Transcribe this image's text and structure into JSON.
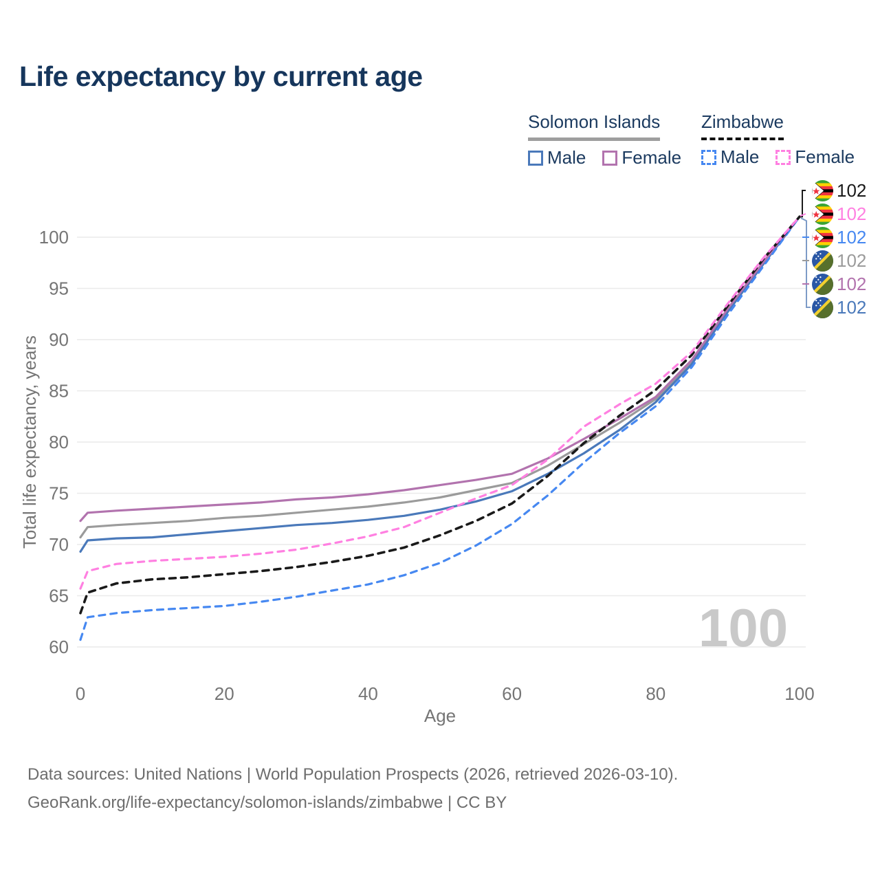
{
  "header": {
    "title": "Life expectancy by current age"
  },
  "legend": {
    "groups": [
      {
        "label": "Solomon Islands",
        "underline_style": "solid",
        "underline_color": "#9e9e9e",
        "items": [
          {
            "label": "Male",
            "color": "#4a79ba",
            "style": "solid"
          },
          {
            "label": "Female",
            "color": "#b273ae",
            "style": "solid"
          }
        ]
      },
      {
        "label": "Zimbabwe",
        "underline_style": "dashed",
        "underline_color": "#111111",
        "items": [
          {
            "label": "Male",
            "color": "#4688f1",
            "style": "dashed"
          },
          {
            "label": "Female",
            "color": "#ff80e1",
            "style": "dashed"
          }
        ]
      }
    ]
  },
  "chart_data": {
    "type": "line",
    "title": "Life expectancy by current age",
    "xlabel": "Age",
    "ylabel": "Total life expectancy, years",
    "x_domain": [
      0,
      100
    ],
    "y_domain": [
      60,
      102
    ],
    "x_ticks": [
      0,
      20,
      40,
      60,
      80,
      100
    ],
    "y_ticks": [
      60,
      65,
      70,
      75,
      80,
      85,
      90,
      95,
      100
    ],
    "grid": true,
    "legend_position": "top-right",
    "watermark": "100",
    "ages": [
      0,
      1,
      5,
      10,
      15,
      20,
      25,
      30,
      35,
      40,
      45,
      50,
      55,
      60,
      65,
      70,
      75,
      80,
      85,
      90,
      95,
      100
    ],
    "series": [
      {
        "id": "solomon-both",
        "country": "Solomon Islands",
        "sex": "Both",
        "color": "#9b9b9b",
        "dash": "solid",
        "values": [
          70.7,
          71.7,
          71.9,
          72.1,
          72.3,
          72.6,
          72.8,
          73.1,
          73.4,
          73.7,
          74.1,
          74.6,
          75.3,
          76.0,
          77.7,
          79.8,
          81.9,
          84.2,
          87.8,
          92.9,
          97.5,
          102
        ]
      },
      {
        "id": "solomon-male",
        "country": "Solomon Islands",
        "sex": "Male",
        "color": "#4a79ba",
        "dash": "solid",
        "values": [
          69.3,
          70.4,
          70.6,
          70.7,
          71.0,
          71.3,
          71.6,
          71.9,
          72.1,
          72.4,
          72.8,
          73.4,
          74.2,
          75.2,
          76.9,
          78.9,
          81.2,
          83.9,
          87.6,
          92.7,
          97.4,
          102
        ]
      },
      {
        "id": "solomon-female",
        "country": "Solomon Islands",
        "sex": "Female",
        "color": "#b273ae",
        "dash": "solid",
        "values": [
          72.3,
          73.1,
          73.3,
          73.5,
          73.7,
          73.9,
          74.1,
          74.4,
          74.6,
          74.9,
          75.3,
          75.8,
          76.3,
          76.9,
          78.4,
          80.3,
          82.3,
          84.4,
          88.0,
          93.0,
          97.6,
          102
        ]
      },
      {
        "id": "zimbabwe-male",
        "country": "Zimbabwe",
        "sex": "Male",
        "color": "#4688f1",
        "dash": "dashed",
        "values": [
          60.7,
          62.9,
          63.3,
          63.6,
          63.8,
          64.0,
          64.4,
          64.9,
          65.5,
          66.1,
          67.0,
          68.2,
          69.9,
          72.0,
          74.8,
          78.0,
          80.9,
          83.5,
          87.3,
          92.4,
          97.2,
          102
        ]
      },
      {
        "id": "zimbabwe-both",
        "country": "Zimbabwe",
        "sex": "Both",
        "color": "#1a1a1a",
        "dash": "dashed",
        "values": [
          63.3,
          65.3,
          66.2,
          66.6,
          66.8,
          67.1,
          67.4,
          67.8,
          68.3,
          68.9,
          69.7,
          70.9,
          72.3,
          74.0,
          76.7,
          79.9,
          82.6,
          85.1,
          88.5,
          93.3,
          97.9,
          102
        ]
      },
      {
        "id": "zimbabwe-female",
        "country": "Zimbabwe",
        "sex": "Female",
        "color": "#ff80e1",
        "dash": "dashed",
        "values": [
          65.7,
          67.4,
          68.1,
          68.4,
          68.6,
          68.8,
          69.1,
          69.5,
          70.1,
          70.8,
          71.7,
          73.1,
          74.5,
          75.8,
          78.3,
          81.5,
          83.7,
          85.7,
          88.8,
          93.5,
          98.0,
          102
        ]
      }
    ],
    "end_labels": [
      {
        "series": "zimbabwe-both",
        "flag": "zimbabwe",
        "value": "102",
        "color": "#1a1a1a"
      },
      {
        "series": "zimbabwe-female",
        "flag": "zimbabwe",
        "value": "102",
        "color": "#ff80e1"
      },
      {
        "series": "zimbabwe-male",
        "flag": "zimbabwe",
        "value": "102",
        "color": "#4688f1"
      },
      {
        "series": "solomon-both",
        "flag": "solomon",
        "value": "102",
        "color": "#9b9b9b"
      },
      {
        "series": "solomon-female",
        "flag": "solomon",
        "value": "102",
        "color": "#b273ae"
      },
      {
        "series": "solomon-male",
        "flag": "solomon",
        "value": "102",
        "color": "#4a79ba"
      }
    ]
  },
  "footer": {
    "line1": "Data sources: United Nations | World Population Prospects (2026, retrieved 2026-03-10).",
    "line2": "GeoRank.org/life-expectancy/solomon-islands/zimbabwe | CC BY"
  }
}
